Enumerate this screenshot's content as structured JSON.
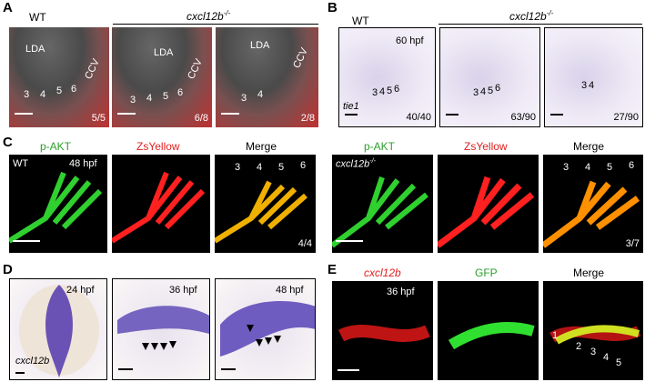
{
  "panel_a": {
    "label": "A",
    "wt": "WT",
    "mutant": "cxcl12b",
    "mutant_sup": "-/-",
    "images": [
      {
        "landmarks": [
          "LDA",
          "CCV"
        ],
        "arches": [
          "3",
          "4",
          "5",
          "6"
        ],
        "ratio": "5/5"
      },
      {
        "landmarks": [
          "LDA",
          "CCV"
        ],
        "arches": [
          "3",
          "4",
          "5",
          "6"
        ],
        "ratio": "6/8"
      },
      {
        "landmarks": [
          "LDA",
          "CCV"
        ],
        "arches": [
          "3",
          "4"
        ],
        "ratio": "2/8"
      }
    ]
  },
  "panel_b": {
    "label": "B",
    "wt": "WT",
    "mutant": "cxcl12b",
    "mutant_sup": "-/-",
    "stage": "60 hpf",
    "probe": "tie1",
    "images": [
      {
        "arches": [
          "3",
          "4",
          "5",
          "6"
        ],
        "ratio": "40/40"
      },
      {
        "arches": [
          "3",
          "4",
          "5",
          "6"
        ],
        "ratio": "63/90"
      },
      {
        "arches": [
          "3",
          "4"
        ],
        "ratio": "27/90"
      }
    ]
  },
  "panel_c": {
    "label": "C",
    "channels": [
      "p-AKT",
      "ZsYellow",
      "Merge"
    ],
    "stage": "48 hpf",
    "left": {
      "genotype": "WT",
      "arches": [
        "3",
        "4",
        "5",
        "6"
      ],
      "ratio": "4/4"
    },
    "right": {
      "genotype": "cxcl12b",
      "genotype_sup": "-/-",
      "arches": [
        "3",
        "4",
        "5",
        "6"
      ],
      "ratio": "3/7"
    }
  },
  "panel_d": {
    "label": "D",
    "stages": [
      "24 hpf",
      "36 hpf",
      "48 hpf"
    ],
    "probe": "cxcl12b"
  },
  "panel_e": {
    "label": "E",
    "channels": [
      "cxcl12b",
      "GFP",
      "Merge"
    ],
    "stage": "36 hpf",
    "arches": [
      "1",
      "2",
      "3",
      "4",
      "5"
    ]
  }
}
